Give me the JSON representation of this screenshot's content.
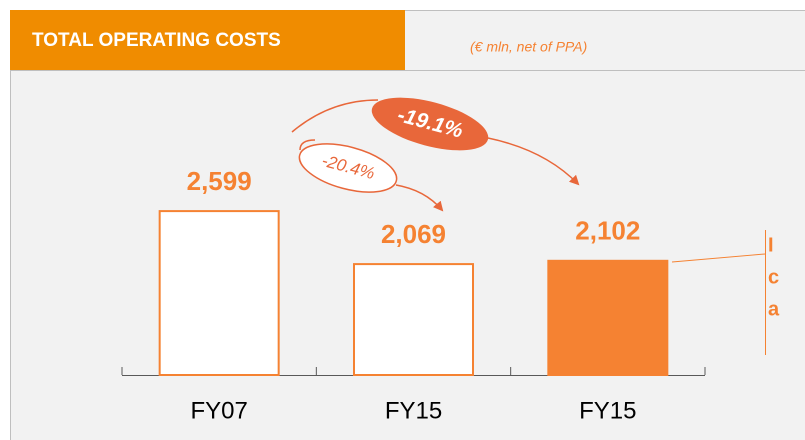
{
  "chart_data": {
    "type": "bar",
    "title": "TOTAL OPERATING COSTS",
    "subtitle": "(€ mln, net of PPA)",
    "categories": [
      "FY07",
      "FY15",
      "FY15"
    ],
    "values": [
      2599,
      2069,
      2102
    ],
    "value_labels": [
      "2,599",
      "2,069",
      "2,102"
    ],
    "colors": [
      "#ffffff",
      "#ffffff",
      "#f58232"
    ],
    "edge_color": "#f58232",
    "ylim": [
      960,
      4000
    ],
    "annotations": [
      "-19.1%",
      "-20.4%"
    ],
    "callout_lines": [
      "I",
      "c",
      "a"
    ]
  }
}
